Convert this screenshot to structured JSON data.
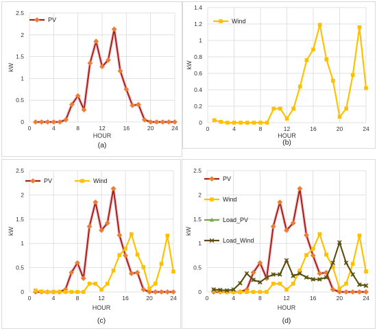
{
  "colors": {
    "pv": "#a0230f",
    "pv_marker": "#ed7d31",
    "wind": "#ffc000",
    "load_pv": "#70ad47",
    "load_wind": "#5e4b12",
    "grid": "#d9d9d9"
  },
  "chart_data": [
    {
      "type": "line",
      "caption": "(a)",
      "xlabel": "HOUR",
      "ylabel": "kW",
      "xlim": [
        0,
        24
      ],
      "ylim": [
        0,
        2.5
      ],
      "xticks": [
        "0",
        "4",
        "8",
        "12",
        "16",
        "20",
        "24"
      ],
      "yticks": [
        "0",
        "0.5",
        "1",
        "1.5",
        "2",
        "2.5"
      ],
      "legend_position": "top-left",
      "series": [
        {
          "name": "PV",
          "key": "pv",
          "x": [
            1,
            2,
            3,
            4,
            5,
            6,
            7,
            8,
            9,
            10,
            11,
            12,
            13,
            14,
            15,
            16,
            17,
            18,
            19,
            20,
            21,
            22,
            23,
            24
          ],
          "values": [
            0,
            0,
            0,
            0,
            0,
            0.05,
            0.4,
            0.6,
            0.28,
            1.35,
            1.85,
            1.27,
            1.42,
            2.13,
            1.17,
            0.75,
            0.38,
            0.4,
            0.05,
            0,
            0,
            0,
            0,
            0
          ]
        }
      ]
    },
    {
      "type": "line",
      "caption": "(b)",
      "xlabel": "HOUR",
      "ylabel": "kW",
      "xlim": [
        0,
        24
      ],
      "ylim": [
        0,
        1.4
      ],
      "xticks": [
        "0",
        "4",
        "8",
        "12",
        "16",
        "20",
        "24"
      ],
      "yticks": [
        "0",
        "0.2",
        "0.4",
        "0.6",
        "0.8",
        "1",
        "1.2",
        "1.4"
      ],
      "legend_position": "top-left",
      "series": [
        {
          "name": "Wind",
          "key": "wind",
          "x": [
            1,
            2,
            3,
            4,
            5,
            6,
            7,
            8,
            9,
            10,
            11,
            12,
            13,
            14,
            15,
            16,
            17,
            18,
            19,
            20,
            21,
            22,
            23,
            24
          ],
          "values": [
            0.03,
            0.01,
            0,
            0,
            0,
            0,
            0,
            0,
            0,
            0.17,
            0.17,
            0.05,
            0.17,
            0.44,
            0.76,
            0.89,
            1.19,
            0.77,
            0.51,
            0.07,
            0.17,
            0.58,
            1.16,
            0.42
          ]
        }
      ]
    },
    {
      "type": "line",
      "caption": "(c)",
      "xlabel": "HOUR",
      "ylabel": "kW",
      "xlim": [
        0,
        24
      ],
      "ylim": [
        0,
        2.5
      ],
      "xticks": [
        "0",
        "4",
        "8",
        "12",
        "16",
        "20",
        "24"
      ],
      "yticks": [
        "0",
        "0.5",
        "1",
        "1.5",
        "2",
        "2.5"
      ],
      "legend_position": "top-left",
      "series": [
        {
          "name": "PV",
          "key": "pv",
          "x": [
            1,
            2,
            3,
            4,
            5,
            6,
            7,
            8,
            9,
            10,
            11,
            12,
            13,
            14,
            15,
            16,
            17,
            18,
            19,
            20,
            21,
            22,
            23,
            24
          ],
          "values": [
            0,
            0,
            0,
            0,
            0,
            0.05,
            0.4,
            0.6,
            0.28,
            1.35,
            1.85,
            1.27,
            1.42,
            2.13,
            1.17,
            0.75,
            0.38,
            0.4,
            0.05,
            0,
            0,
            0,
            0,
            0
          ]
        },
        {
          "name": "Wind",
          "key": "wind",
          "x": [
            1,
            2,
            3,
            4,
            5,
            6,
            7,
            8,
            9,
            10,
            11,
            12,
            13,
            14,
            15,
            16,
            17,
            18,
            19,
            20,
            21,
            22,
            23,
            24
          ],
          "values": [
            0.03,
            0.01,
            0,
            0,
            0,
            0,
            0,
            0,
            0,
            0.17,
            0.17,
            0.05,
            0.17,
            0.44,
            0.76,
            0.89,
            1.19,
            0.77,
            0.51,
            0.07,
            0.17,
            0.58,
            1.16,
            0.42
          ]
        }
      ]
    },
    {
      "type": "line",
      "caption": "(d)",
      "xlabel": "HOUR",
      "ylabel": "kW",
      "xlim": [
        0,
        24
      ],
      "ylim": [
        0,
        2.5
      ],
      "xticks": [
        "0",
        "4",
        "8",
        "12",
        "16",
        "20",
        "24"
      ],
      "yticks": [
        "0",
        "0.5",
        "1",
        "1.5",
        "2",
        "2.5"
      ],
      "legend_position": "left",
      "series": [
        {
          "name": "PV",
          "key": "pv",
          "x": [
            1,
            2,
            3,
            4,
            5,
            6,
            7,
            8,
            9,
            10,
            11,
            12,
            13,
            14,
            15,
            16,
            17,
            18,
            19,
            20,
            21,
            22,
            23,
            24
          ],
          "values": [
            0,
            0,
            0,
            0,
            0,
            0.05,
            0.4,
            0.6,
            0.28,
            1.35,
            1.85,
            1.27,
            1.42,
            2.13,
            1.17,
            0.75,
            0.38,
            0.4,
            0.05,
            0,
            0,
            0,
            0,
            0
          ]
        },
        {
          "name": "Wind",
          "key": "wind",
          "x": [
            1,
            2,
            3,
            4,
            5,
            6,
            7,
            8,
            9,
            10,
            11,
            12,
            13,
            14,
            15,
            16,
            17,
            18,
            19,
            20,
            21,
            22,
            23,
            24
          ],
          "values": [
            0.03,
            0.01,
            0,
            0,
            0,
            0,
            0,
            0,
            0,
            0.17,
            0.17,
            0.05,
            0.17,
            0.44,
            0.76,
            0.89,
            1.19,
            0.77,
            0.51,
            0.07,
            0.17,
            0.58,
            1.16,
            0.42
          ]
        },
        {
          "name": "Load_PV",
          "key": "load_pv",
          "x": [
            1,
            2,
            3,
            4,
            5,
            6,
            7,
            8,
            9,
            10,
            11,
            12,
            13,
            14,
            15,
            16,
            17,
            18,
            19,
            20,
            21,
            22,
            23,
            24
          ],
          "values": [
            0.05,
            0.04,
            0.03,
            0.05,
            0.18,
            0.38,
            0.25,
            0.2,
            0.3,
            0.36,
            0.36,
            0.65,
            0.33,
            0.38,
            0.3,
            0.26,
            0.26,
            0.3,
            0.6,
            1.02,
            0.6,
            0.36,
            0.15,
            0.13
          ]
        },
        {
          "name": "Load_Wind",
          "key": "load_wind",
          "x": [
            1,
            2,
            3,
            4,
            5,
            6,
            7,
            8,
            9,
            10,
            11,
            12,
            13,
            14,
            15,
            16,
            17,
            18,
            19,
            20,
            21,
            22,
            23,
            24
          ],
          "values": [
            0.05,
            0.04,
            0.03,
            0.05,
            0.18,
            0.38,
            0.25,
            0.2,
            0.3,
            0.36,
            0.36,
            0.65,
            0.33,
            0.38,
            0.3,
            0.26,
            0.26,
            0.3,
            0.6,
            1.02,
            0.6,
            0.36,
            0.15,
            0.13
          ]
        }
      ]
    }
  ]
}
